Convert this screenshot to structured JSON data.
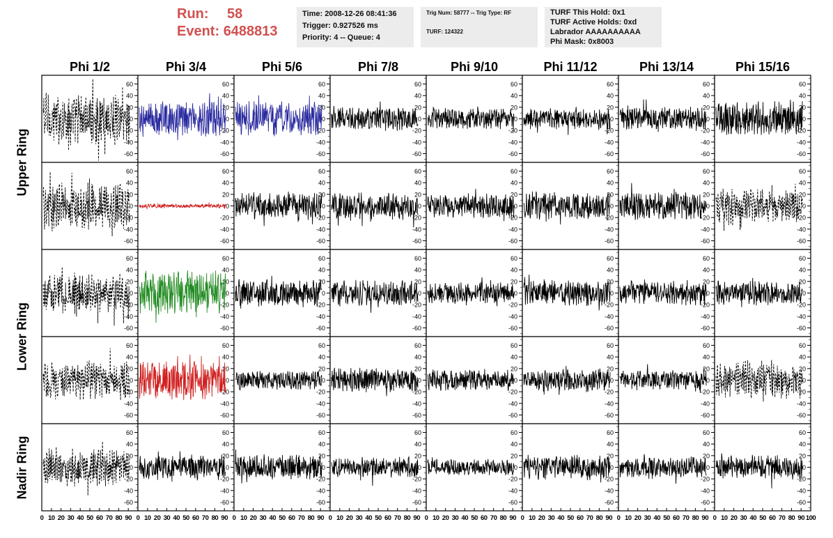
{
  "run": {
    "run_label": "Run:",
    "run_value": "58",
    "event_label": "Event:",
    "event_value": "6488813"
  },
  "info_time": {
    "time": "Time: 2008-12-26 08:41:36",
    "trigger": "Trigger: 0.927526 ms",
    "priority": "Priority: 4 -- Queue: 4"
  },
  "info_trig": {
    "trig": "Trig Num: 58777 -- Trig Type: RF",
    "turf": "TURF: 124322"
  },
  "info_turf": {
    "hold": "TURF This Hold: 0x1",
    "active": "TURF Active Holds: 0xd",
    "labrador": "Labrador AAAAAAAAAA",
    "mask": "Phi Mask: 0x8003"
  },
  "phi_headers": [
    "Phi 1/2",
    "Phi 3/4",
    "Phi 5/6",
    "Phi 7/8",
    "Phi 9/10",
    "Phi 11/12",
    "Phi 13/14",
    "Phi 15/16"
  ],
  "rings": [
    {
      "label": "Upper Ring",
      "rows": [
        0,
        1
      ]
    },
    {
      "label": "Lower Ring",
      "rows": [
        2,
        3
      ]
    },
    {
      "label": "Nadir Ring",
      "rows": [
        4
      ]
    }
  ],
  "y_ticks": [
    "60",
    "40",
    "20",
    "0",
    "-20",
    "-40",
    "-60"
  ],
  "x_ticks": [
    "0",
    "10",
    "20",
    "30",
    "40",
    "50",
    "60",
    "70",
    "80",
    "90",
    "100"
  ],
  "chart_data": {
    "type": "line",
    "xlim": [
      0,
      100
    ],
    "ylim": [
      -75,
      75
    ],
    "grid": false,
    "panels_note_colors": {
      "black": "#000000",
      "blue": "#2a2aa0",
      "red": "#d02020",
      "green": "#228b22"
    },
    "panels": [
      [
        {
          "style": "dashed",
          "color": "#000000",
          "amp": 38
        },
        {
          "style": "solid",
          "color": "#2a2aa0",
          "amp": 25
        },
        {
          "style": "solid",
          "color": "#2a2aa0",
          "amp": 25
        },
        {
          "style": "solid",
          "color": "#000000",
          "amp": 17
        },
        {
          "style": "solid",
          "color": "#000000",
          "amp": 15
        },
        {
          "style": "solid",
          "color": "#000000",
          "amp": 15
        },
        {
          "style": "solid",
          "color": "#000000",
          "amp": 17
        },
        {
          "style": "solid",
          "color": "#000000",
          "amp": 25
        }
      ],
      [
        {
          "style": "dashed",
          "color": "#000000",
          "amp": 35
        },
        {
          "style": "solid",
          "color": "#d02020",
          "amp": 3
        },
        {
          "style": "solid",
          "color": "#000000",
          "amp": 20
        },
        {
          "style": "solid",
          "color": "#000000",
          "amp": 20
        },
        {
          "style": "solid",
          "color": "#000000",
          "amp": 18
        },
        {
          "style": "solid",
          "color": "#000000",
          "amp": 20
        },
        {
          "style": "solid",
          "color": "#000000",
          "amp": 20
        },
        {
          "style": "dashed",
          "color": "#000000",
          "amp": 25
        }
      ],
      [
        {
          "style": "dashed",
          "color": "#000000",
          "amp": 28
        },
        {
          "style": "solid",
          "color": "#228b22",
          "amp": 32
        },
        {
          "style": "solid",
          "color": "#000000",
          "amp": 20
        },
        {
          "style": "solid",
          "color": "#000000",
          "amp": 18
        },
        {
          "style": "solid",
          "color": "#000000",
          "amp": 15
        },
        {
          "style": "solid",
          "color": "#000000",
          "amp": 18
        },
        {
          "style": "solid",
          "color": "#000000",
          "amp": 18
        },
        {
          "style": "solid",
          "color": "#000000",
          "amp": 17
        }
      ],
      [
        {
          "style": "dashed",
          "color": "#000000",
          "amp": 28
        },
        {
          "style": "solid",
          "color": "#d02020",
          "amp": 28
        },
        {
          "style": "solid",
          "color": "#000000",
          "amp": 14
        },
        {
          "style": "solid",
          "color": "#000000",
          "amp": 18
        },
        {
          "style": "solid",
          "color": "#000000",
          "amp": 16
        },
        {
          "style": "solid",
          "color": "#000000",
          "amp": 16
        },
        {
          "style": "solid",
          "color": "#000000",
          "amp": 14
        },
        {
          "style": "dashed",
          "color": "#000000",
          "amp": 28
        }
      ],
      [
        {
          "style": "dashed",
          "color": "#000000",
          "amp": 28
        },
        {
          "style": "solid",
          "color": "#000000",
          "amp": 18
        },
        {
          "style": "solid",
          "color": "#000000",
          "amp": 18
        },
        {
          "style": "solid",
          "color": "#000000",
          "amp": 15
        },
        {
          "style": "solid",
          "color": "#000000",
          "amp": 12
        },
        {
          "style": "solid",
          "color": "#000000",
          "amp": 18
        },
        {
          "style": "solid",
          "color": "#000000",
          "amp": 15
        },
        {
          "style": "solid",
          "color": "#000000",
          "amp": 18
        }
      ]
    ]
  }
}
